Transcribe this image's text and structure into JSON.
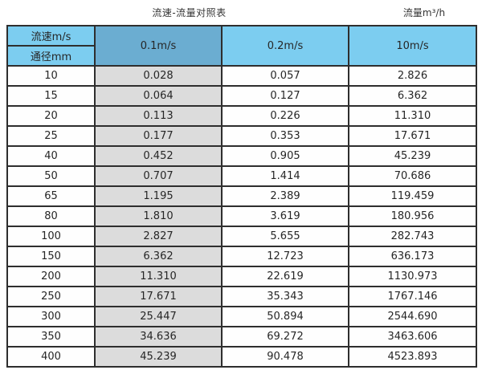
{
  "colors": {
    "header_light_blue": "#7ccdf0",
    "header_dark_blue": "#6badd1",
    "shaded_column_gray": "#dcdcdc",
    "border_dark": "#2e2e2e",
    "background": "#ffffff"
  },
  "caption": {
    "title": "流速-流量对照表",
    "unit_label": "流量m³/h"
  },
  "table": {
    "corner_top_label": "流速m/s",
    "corner_bottom_label": "通径mm",
    "column_headers": [
      "0.1m/s",
      "0.2m/s",
      "10m/s"
    ],
    "rows": [
      [
        "10",
        "0.028",
        "0.057",
        "2.826"
      ],
      [
        "15",
        "0.064",
        "0.127",
        "6.362"
      ],
      [
        "20",
        "0.113",
        "0.226",
        "11.310"
      ],
      [
        "25",
        "0.177",
        "0.353",
        "17.671"
      ],
      [
        "40",
        "0.452",
        "0.905",
        "45.239"
      ],
      [
        "50",
        "0.707",
        "1.414",
        "70.686"
      ],
      [
        "65",
        "1.195",
        "2.389",
        "119.459"
      ],
      [
        "80",
        "1.810",
        "3.619",
        "180.956"
      ],
      [
        "100",
        "2.827",
        "5.655",
        "282.743"
      ],
      [
        "150",
        "6.362",
        "12.723",
        "636.173"
      ],
      [
        "200",
        "11.310",
        "22.619",
        "1130.973"
      ],
      [
        "250",
        "17.671",
        "35.343",
        "1767.146"
      ],
      [
        "300",
        "25.447",
        "50.894",
        "2544.690"
      ],
      [
        "350",
        "34.636",
        "69.272",
        "3463.606"
      ],
      [
        "400",
        "45.239",
        "90.478",
        "4523.893"
      ]
    ]
  },
  "chart_data": {
    "type": "table",
    "title": "流速-流量对照表",
    "unit": "流量m³/h",
    "row_header_label": "通径mm",
    "column_header_label": "流速m/s",
    "columns": [
      "0.1m/s",
      "0.2m/s",
      "10m/s"
    ],
    "diameters_mm": [
      10,
      15,
      20,
      25,
      40,
      50,
      65,
      80,
      100,
      150,
      200,
      250,
      300,
      350,
      400
    ],
    "series": [
      {
        "name": "0.1m/s",
        "values": [
          0.028,
          0.064,
          0.113,
          0.177,
          0.452,
          0.707,
          1.195,
          1.81,
          2.827,
          6.362,
          11.31,
          17.671,
          25.447,
          34.636,
          45.239
        ]
      },
      {
        "name": "0.2m/s",
        "values": [
          0.057,
          0.127,
          0.226,
          0.353,
          0.905,
          1.414,
          2.389,
          3.619,
          5.655,
          12.723,
          22.619,
          35.343,
          50.894,
          69.272,
          90.478
        ]
      },
      {
        "name": "10m/s",
        "values": [
          2.826,
          6.362,
          11.31,
          17.671,
          45.239,
          70.686,
          119.459,
          180.956,
          282.743,
          636.173,
          1130.973,
          1767.146,
          2544.69,
          3463.606,
          4523.893
        ]
      }
    ]
  }
}
